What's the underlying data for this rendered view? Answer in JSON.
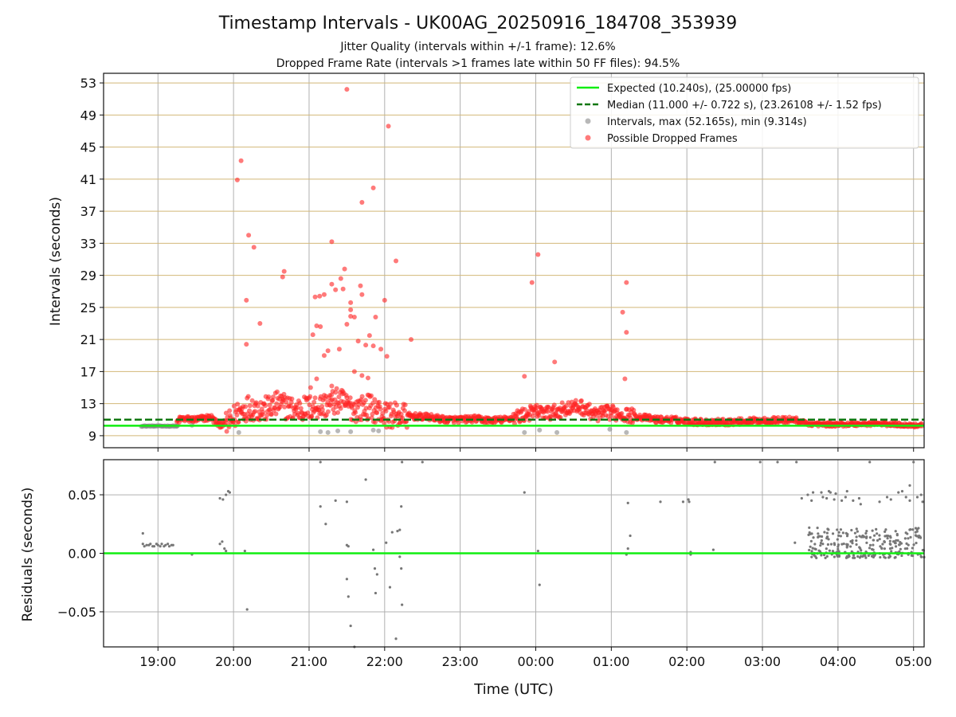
{
  "figure": {
    "title": "Timestamp Intervals - UK00AG_20250916_184708_353939",
    "subtitle_1": "Jitter Quality (intervals within +/-1 frame): 12.6%",
    "subtitle_2": "Dropped Frame Rate (intervals >1 frames late within 50 FF files): 94.5%"
  },
  "chart_data": [
    {
      "type": "scatter",
      "panel": "top",
      "ylabel": "Intervals (seconds)",
      "xlabel": "",
      "x_tick_labels": [
        "19:00",
        "20:00",
        "21:00",
        "22:00",
        "23:00",
        "00:00",
        "01:00",
        "02:00",
        "03:00",
        "04:00",
        "05:00"
      ],
      "x_ticks_h": [
        19,
        20,
        21,
        22,
        23,
        24,
        25,
        26,
        27,
        28,
        29
      ],
      "xlim_h": [
        18.28,
        29.14
      ],
      "ylim": [
        7.5,
        54.2
      ],
      "y_ticks": [
        9,
        13,
        17,
        21,
        25,
        29,
        33,
        37,
        41,
        45,
        49,
        53
      ],
      "grid": true,
      "grid_color_y": "#d2b878",
      "grid_color_x": "#b0b0b0",
      "legend_placement": "top-right",
      "legend": [
        {
          "label": "Expected (10.240s), (25.00000 fps)",
          "marker": "line",
          "color": "#11ee11"
        },
        {
          "label": "Median (11.000 +/- 0.722 s), (23.26108 +/- 1.52 fps)",
          "marker": "dashed",
          "color": "#117711"
        },
        {
          "label": "Intervals, max (52.165s), min (9.314s)",
          "marker": "dot",
          "color": "#888888"
        },
        {
          "label": "Possible Dropped Frames",
          "marker": "dot",
          "color": "#ff2222"
        }
      ],
      "expected_interval": 10.24,
      "median_interval": 11.0,
      "baseline_track": [
        [
          18.78,
          10.25
        ],
        [
          19.2,
          10.3
        ],
        [
          19.3,
          11.1
        ],
        [
          19.5,
          11.0
        ],
        [
          19.7,
          11.3
        ],
        [
          19.8,
          10.4
        ],
        [
          19.95,
          10.6
        ],
        [
          20.05,
          11.8
        ],
        [
          20.2,
          12.6
        ],
        [
          20.4,
          12.2
        ],
        [
          20.6,
          13.0
        ],
        [
          20.8,
          12.2
        ],
        [
          21.0,
          12.5
        ],
        [
          21.2,
          12.8
        ],
        [
          21.4,
          13.4
        ],
        [
          21.6,
          12.3
        ],
        [
          21.8,
          12.6
        ],
        [
          22.0,
          11.6
        ],
        [
          22.2,
          11.5
        ],
        [
          22.4,
          11.4
        ],
        [
          22.6,
          11.3
        ],
        [
          22.8,
          11.0
        ],
        [
          23.0,
          11.0
        ],
        [
          23.2,
          11.1
        ],
        [
          23.4,
          10.9
        ],
        [
          23.6,
          11.0
        ],
        [
          23.8,
          11.5
        ],
        [
          24.0,
          12.0
        ],
        [
          24.2,
          11.8
        ],
        [
          24.4,
          12.4
        ],
        [
          24.6,
          12.6
        ],
        [
          24.8,
          11.6
        ],
        [
          25.0,
          11.9
        ],
        [
          25.2,
          11.6
        ],
        [
          25.4,
          11.3
        ],
        [
          25.6,
          11.0
        ],
        [
          25.8,
          11.0
        ],
        [
          26.0,
          10.8
        ],
        [
          26.2,
          10.7
        ],
        [
          26.5,
          10.7
        ],
        [
          26.8,
          10.8
        ],
        [
          27.0,
          10.9
        ],
        [
          27.2,
          10.9
        ],
        [
          27.4,
          11.0
        ],
        [
          27.6,
          10.5
        ],
        [
          27.8,
          10.4
        ],
        [
          28.0,
          10.4
        ],
        [
          28.5,
          10.5
        ],
        [
          29.0,
          10.3
        ],
        [
          29.14,
          10.3
        ]
      ],
      "gray_points": [
        [
          18.85,
          10.2
        ],
        [
          18.95,
          10.2
        ],
        [
          19.05,
          10.2
        ],
        [
          19.15,
          10.2
        ],
        [
          19.25,
          10.2
        ],
        [
          19.45,
          10.3
        ],
        [
          20.07,
          9.4
        ],
        [
          21.15,
          9.5
        ],
        [
          21.25,
          9.4
        ],
        [
          21.38,
          9.6
        ],
        [
          21.55,
          9.5
        ],
        [
          21.85,
          9.7
        ],
        [
          21.92,
          9.6
        ],
        [
          23.85,
          9.4
        ],
        [
          24.05,
          9.7
        ],
        [
          24.28,
          9.4
        ],
        [
          24.98,
          9.8
        ],
        [
          25.2,
          9.4
        ]
      ],
      "red_points": [
        [
          21.5,
          52.2
        ],
        [
          22.05,
          47.6
        ],
        [
          20.1,
          43.3
        ],
        [
          20.05,
          40.9
        ],
        [
          21.85,
          39.9
        ],
        [
          21.7,
          38.1
        ],
        [
          20.2,
          34.0
        ],
        [
          20.27,
          32.5
        ],
        [
          21.3,
          33.2
        ],
        [
          22.15,
          30.8
        ],
        [
          24.03,
          31.6
        ],
        [
          21.47,
          29.8
        ],
        [
          20.67,
          29.5
        ],
        [
          20.65,
          28.8
        ],
        [
          21.42,
          28.6
        ],
        [
          21.3,
          27.9
        ],
        [
          21.35,
          27.2
        ],
        [
          21.45,
          27.3
        ],
        [
          21.68,
          27.7
        ],
        [
          21.2,
          26.6
        ],
        [
          21.14,
          26.4
        ],
        [
          21.08,
          26.3
        ],
        [
          22.0,
          25.9
        ],
        [
          20.17,
          25.9
        ],
        [
          23.95,
          28.1
        ],
        [
          25.2,
          28.1
        ],
        [
          25.15,
          24.4
        ],
        [
          21.55,
          25.6
        ],
        [
          21.55,
          24.7
        ],
        [
          21.7,
          26.6
        ],
        [
          21.55,
          23.9
        ],
        [
          21.6,
          23.8
        ],
        [
          21.88,
          23.8
        ],
        [
          20.35,
          23.0
        ],
        [
          21.5,
          22.9
        ],
        [
          21.1,
          22.7
        ],
        [
          21.15,
          22.6
        ],
        [
          21.05,
          21.6
        ],
        [
          21.8,
          21.5
        ],
        [
          22.35,
          21.0
        ],
        [
          25.2,
          21.9
        ],
        [
          20.17,
          20.4
        ],
        [
          21.65,
          20.8
        ],
        [
          21.85,
          20.2
        ],
        [
          21.75,
          20.3
        ],
        [
          21.4,
          19.8
        ],
        [
          21.25,
          19.6
        ],
        [
          21.2,
          19.0
        ],
        [
          21.95,
          19.8
        ],
        [
          22.03,
          18.9
        ],
        [
          24.25,
          18.2
        ],
        [
          21.6,
          17.0
        ],
        [
          21.7,
          16.5
        ],
        [
          21.78,
          16.2
        ],
        [
          21.1,
          16.1
        ],
        [
          23.85,
          16.4
        ],
        [
          25.18,
          16.1
        ],
        [
          21.02,
          15.0
        ],
        [
          21.3,
          15.2
        ]
      ]
    },
    {
      "type": "scatter",
      "panel": "bottom",
      "xlabel": "Time (UTC)",
      "ylabel": "Residuals (seconds)",
      "x_tick_labels": [
        "19:00",
        "20:00",
        "21:00",
        "22:00",
        "23:00",
        "00:00",
        "01:00",
        "02:00",
        "03:00",
        "04:00",
        "05:00"
      ],
      "x_ticks_h": [
        19,
        20,
        21,
        22,
        23,
        24,
        25,
        26,
        27,
        28,
        29
      ],
      "xlim_h": [
        18.28,
        29.14
      ],
      "ylim": [
        -0.08,
        0.08
      ],
      "y_ticks": [
        -0.05,
        0.0,
        0.05
      ],
      "y_tick_labels": [
        "−0.05",
        "0.00",
        "0.05"
      ],
      "zero_line_color": "#11ee11",
      "grid": true,
      "points": [
        [
          18.8,
          0.017
        ],
        [
          18.8,
          0.008
        ],
        [
          18.85,
          0.007
        ],
        [
          18.9,
          0.008
        ],
        [
          18.95,
          0.006
        ],
        [
          19.0,
          0.007
        ],
        [
          19.05,
          0.008
        ],
        [
          19.1,
          0.007
        ],
        [
          19.15,
          0.006
        ],
        [
          19.2,
          0.007
        ],
        [
          18.82,
          0.006
        ],
        [
          18.88,
          0.007
        ],
        [
          18.93,
          0.006
        ],
        [
          18.98,
          0.008
        ],
        [
          19.03,
          0.006
        ],
        [
          19.08,
          0.006
        ],
        [
          19.13,
          0.008
        ],
        [
          19.18,
          0.007
        ],
        [
          19.45,
          -0.001
        ],
        [
          19.82,
          0.047
        ],
        [
          19.86,
          0.046
        ],
        [
          19.9,
          0.05
        ],
        [
          19.93,
          0.053
        ],
        [
          19.95,
          0.052
        ],
        [
          19.82,
          0.008
        ],
        [
          19.85,
          0.01
        ],
        [
          19.88,
          0.004
        ],
        [
          19.9,
          0.002
        ],
        [
          20.15,
          0.002
        ],
        [
          20.18,
          -0.048
        ],
        [
          21.15,
          0.078
        ],
        [
          21.15,
          0.04
        ],
        [
          21.22,
          0.025
        ],
        [
          21.35,
          0.045
        ],
        [
          21.5,
          0.044
        ],
        [
          21.5,
          0.007
        ],
        [
          21.52,
          0.006
        ],
        [
          21.5,
          -0.022
        ],
        [
          21.52,
          -0.037
        ],
        [
          21.55,
          -0.062
        ],
        [
          21.6,
          -0.08
        ],
        [
          21.75,
          0.063
        ],
        [
          21.85,
          0.003
        ],
        [
          21.87,
          -0.013
        ],
        [
          21.9,
          -0.018
        ],
        [
          21.88,
          -0.034
        ],
        [
          22.02,
          0.009
        ],
        [
          22.1,
          0.018
        ],
        [
          22.07,
          -0.029
        ],
        [
          22.17,
          0.019
        ],
        [
          22.2,
          0.02
        ],
        [
          22.22,
          0.04
        ],
        [
          22.2,
          -0.003
        ],
        [
          22.22,
          -0.013
        ],
        [
          22.23,
          -0.044
        ],
        [
          22.15,
          -0.073
        ],
        [
          22.23,
          0.078
        ],
        [
          22.5,
          0.078
        ],
        [
          23.85,
          0.052
        ],
        [
          24.03,
          0.002
        ],
        [
          24.05,
          -0.027
        ],
        [
          25.22,
          0.043
        ],
        [
          25.25,
          0.015
        ],
        [
          25.22,
          0.004
        ],
        [
          25.2,
          -0.001
        ],
        [
          25.65,
          0.044
        ],
        [
          25.95,
          0.044
        ],
        [
          26.02,
          0.046
        ],
        [
          26.03,
          0.044
        ],
        [
          26.05,
          0.001
        ],
        [
          26.05,
          -0.001
        ],
        [
          26.35,
          0.003
        ],
        [
          26.37,
          0.078
        ],
        [
          26.97,
          0.078
        ],
        [
          27.2,
          0.078
        ],
        [
          27.43,
          0.009
        ],
        [
          27.45,
          0.078
        ],
        [
          27.52,
          0.047
        ],
        [
          27.6,
          0.05
        ],
        [
          27.65,
          0.045
        ],
        [
          27.67,
          0.052
        ],
        [
          27.78,
          0.052
        ],
        [
          27.8,
          0.048
        ],
        [
          27.85,
          0.047
        ],
        [
          27.88,
          0.053
        ],
        [
          27.9,
          0.052
        ],
        [
          27.95,
          0.046
        ],
        [
          27.97,
          0.051
        ],
        [
          28.05,
          0.045
        ],
        [
          28.1,
          0.048
        ],
        [
          28.12,
          0.053
        ],
        [
          28.2,
          0.045
        ],
        [
          28.28,
          0.047
        ],
        [
          28.3,
          0.042
        ],
        [
          28.42,
          0.078
        ],
        [
          28.55,
          0.044
        ],
        [
          28.65,
          0.048
        ],
        [
          28.7,
          0.046
        ],
        [
          28.8,
          0.052
        ],
        [
          28.85,
          0.053
        ],
        [
          28.9,
          0.048
        ],
        [
          28.95,
          0.045
        ],
        [
          29.05,
          0.048
        ],
        [
          29.1,
          0.05
        ],
        [
          29.12,
          0.044
        ],
        [
          29.0,
          0.078
        ],
        [
          28.95,
          0.058
        ]
      ],
      "dense_band": {
        "x_start_h": 27.6,
        "x_end_h": 29.14,
        "y_min": -0.004,
        "y_max": 0.022,
        "count": 260
      }
    }
  ]
}
